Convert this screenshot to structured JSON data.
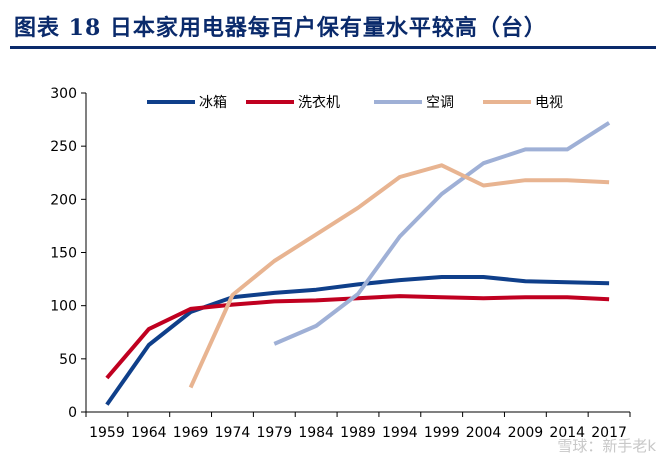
{
  "header": {
    "title": "图表 18   日本家用电器每百户保有量水平较高（台）"
  },
  "watermark": "雪球：新手老k",
  "colors": {
    "title": "#0a2a6b",
    "axis": "#000000"
  },
  "chart_data": {
    "type": "line",
    "x": [
      "1959",
      "1964",
      "1969",
      "1974",
      "1979",
      "1984",
      "1989",
      "1994",
      "1999",
      "2004",
      "2009",
      "2014",
      "2017"
    ],
    "ylim": [
      0,
      300
    ],
    "yticks": [
      0,
      50,
      100,
      150,
      200,
      250,
      300
    ],
    "grid": false,
    "legend_position": "top",
    "series": [
      {
        "name": "冰箱",
        "color": "#0f3f8a",
        "values": [
          7,
          63,
          94,
          108,
          112,
          115,
          120,
          124,
          127,
          127,
          123,
          122,
          121
        ]
      },
      {
        "name": "洗衣机",
        "color": "#c00020",
        "values": [
          32,
          78,
          97,
          101,
          104,
          105,
          107,
          109,
          108,
          107,
          108,
          108,
          106
        ]
      },
      {
        "name": "空调",
        "color": "#9fb0d6",
        "values": [
          null,
          null,
          null,
          null,
          64,
          81,
          111,
          165,
          205,
          234,
          247,
          247,
          272
        ]
      },
      {
        "name": "电视",
        "color": "#e8b491",
        "values": [
          null,
          null,
          23,
          110,
          142,
          167,
          192,
          221,
          232,
          213,
          218,
          218,
          216
        ]
      }
    ]
  }
}
